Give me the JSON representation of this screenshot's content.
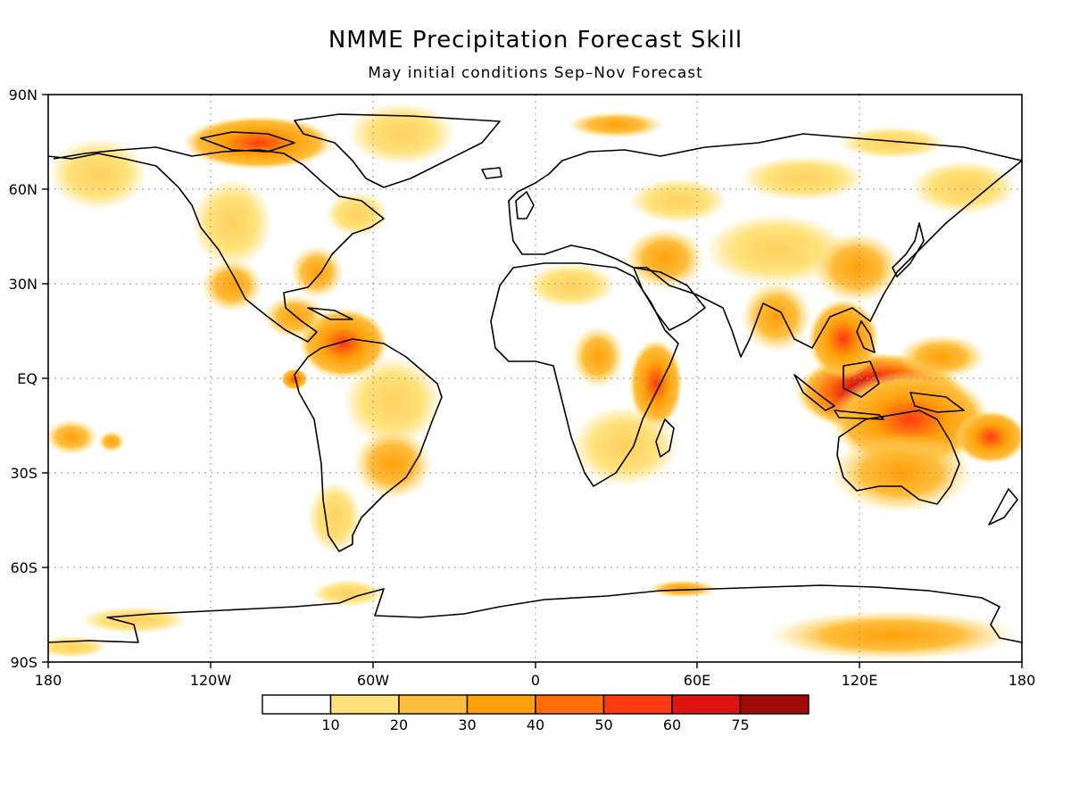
{
  "map": {
    "title": "NMME Precipitation Forecast Skill",
    "subtitle": "May initial conditions  Sep–Nov Forecast",
    "lon_ticks": [
      "180",
      "120W",
      "60W",
      "0",
      "60E",
      "120E",
      "180"
    ],
    "lat_ticks": [
      "90N",
      "60N",
      "30N",
      "EQ",
      "30S",
      "60S",
      "90S"
    ],
    "lon_range": [
      -180,
      180
    ],
    "lat_range": [
      -90,
      90
    ],
    "grid": true
  },
  "legend": {
    "labels": [
      "10",
      "20",
      "30",
      "40",
      "50",
      "60",
      "75"
    ],
    "colors": [
      "#ffffff",
      "#ffe27a",
      "#ffbd3c",
      "#ffa00a",
      "#ff6e08",
      "#ff3b10",
      "#dd1410",
      "#a00a08"
    ]
  },
  "skill_regions": [
    {
      "lon": 130,
      "lat": -5,
      "level": 6
    },
    {
      "lon": 120,
      "lat": -10,
      "level": 5
    },
    {
      "lon": 135,
      "lat": -20,
      "level": 4
    },
    {
      "lon": 165,
      "lat": -20,
      "level": 4
    },
    {
      "lon": 140,
      "lat": -35,
      "level": 2
    },
    {
      "lon": -72,
      "lat": 12,
      "level": 4
    },
    {
      "lon": 40,
      "lat": 0,
      "level": 3
    },
    {
      "lon": -100,
      "lat": 78,
      "level": 3
    },
    {
      "lon": 140,
      "lat": -82,
      "level": 2
    },
    {
      "lon": -60,
      "lat": -30,
      "level": 2
    }
  ]
}
